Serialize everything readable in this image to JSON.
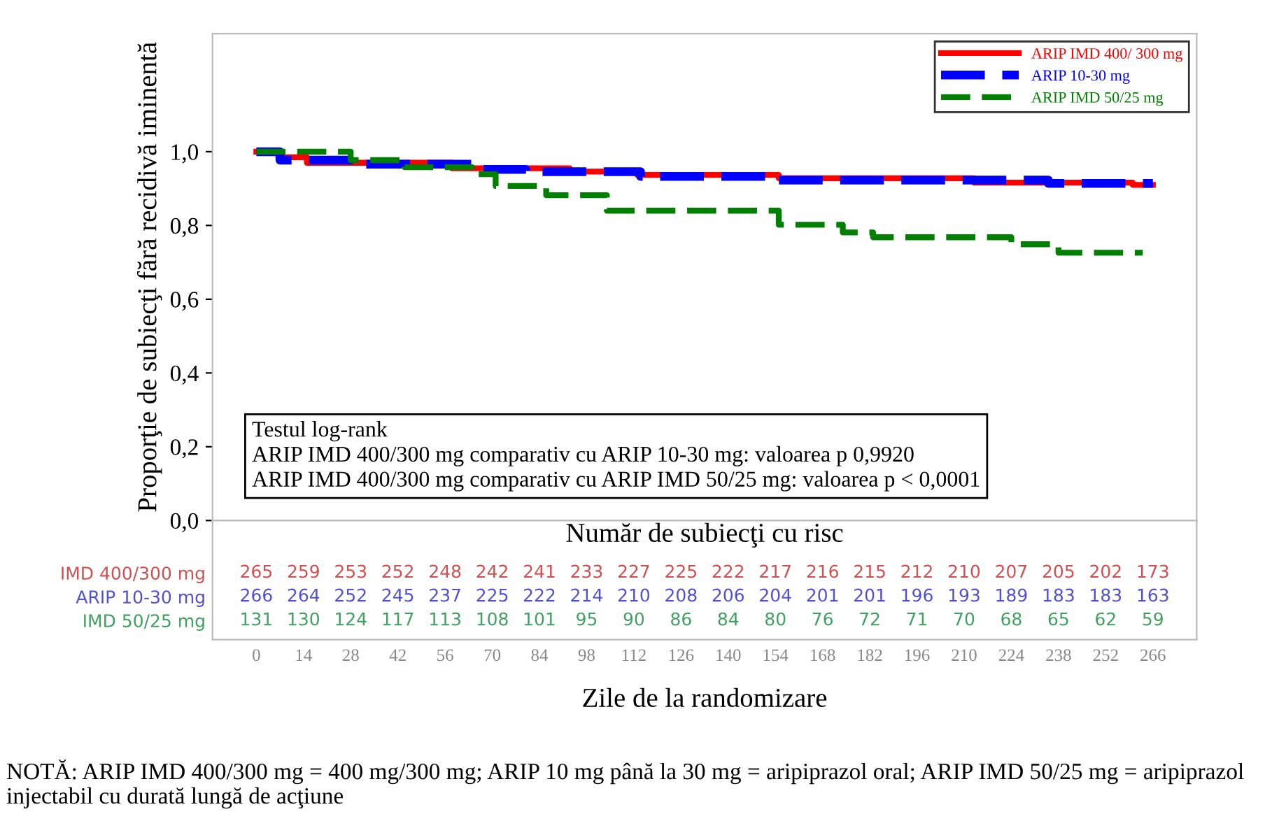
{
  "chart_data": [
    {
      "type": "step",
      "ylabel": "Proporţie de subiecţi fără recidivă iminentă",
      "xlim": [
        -13,
        279
      ],
      "ylim": [
        0,
        1.32
      ],
      "yticks": [
        {
          "value": 0,
          "label": "0,0"
        },
        {
          "value": 0.2,
          "label": "0,2"
        },
        {
          "value": 0.4,
          "label": "0,4"
        },
        {
          "value": 0.6,
          "label": "0,6"
        },
        {
          "value": 0.8,
          "label": "0,8"
        },
        {
          "value": 1.0,
          "label": "1,0"
        }
      ],
      "xticks": [
        0,
        14,
        28,
        42,
        56,
        70,
        84,
        98,
        112,
        126,
        140,
        154,
        168,
        182,
        196,
        210,
        224,
        238,
        252,
        266
      ],
      "xlabel": "Zile de la randomizare",
      "grid": false,
      "legend": "top right",
      "marker": "none",
      "series": [
        {
          "name": "ARIP IMD 400/ 300 mg",
          "color": "#ff0000",
          "line_style": "solid",
          "x": [
            0,
            7,
            15,
            58,
            93,
            113,
            155,
            213,
            260,
            266
          ],
          "values": [
            1.0,
            0.985,
            0.97,
            0.955,
            0.946,
            0.937,
            0.928,
            0.916,
            0.91,
            0.91
          ]
        },
        {
          "name": "ARIP 10-30 mg",
          "color": "#0000ff",
          "line_style": "dashed",
          "x": [
            0,
            7,
            31,
            64,
            80,
            114,
            152,
            235,
            266
          ],
          "values": [
            1.0,
            0.977,
            0.966,
            0.952,
            0.946,
            0.933,
            0.923,
            0.914,
            0.914
          ]
        },
        {
          "name": "ARIP IMD 50/25 mg",
          "color": "#008000",
          "line_style": "dashed",
          "x": [
            0,
            28,
            44,
            64,
            71,
            86,
            104,
            155,
            174,
            183,
            224,
            238,
            263
          ],
          "values": [
            1.0,
            0.977,
            0.958,
            0.939,
            0.907,
            0.882,
            0.84,
            0.802,
            0.781,
            0.768,
            0.749,
            0.726,
            0.726
          ]
        }
      ],
      "annotations": [
        "Testul log-rank",
        "ARIP IMD 400/300 mg comparativ cu ARIP 10-30 mg: valoarea p 0,9920",
        "ARIP IMD 400/300 mg comparativ cu ARIP IMD 50/25 mg: valoarea p < 0,0001"
      ]
    },
    {
      "type": "heatmap",
      "title": "Număr de subiecţi cu risc",
      "data_labels": true,
      "y_categories": [
        "IMD 400/300 mg",
        "ARIP 10-30 mg",
        "IMD 50/25 mg"
      ],
      "colors": [
        "#d05050",
        "#5050d0",
        "#40a060"
      ],
      "cells": [
        [
          265,
          259,
          253,
          252,
          248,
          242,
          241,
          233,
          227,
          225,
          222,
          217,
          216,
          215,
          212,
          210,
          207,
          205,
          202,
          173
        ],
        [
          266,
          264,
          252,
          245,
          237,
          225,
          222,
          214,
          210,
          208,
          206,
          204,
          201,
          201,
          196,
          193,
          189,
          183,
          183,
          163
        ],
        [
          131,
          130,
          124,
          117,
          113,
          108,
          101,
          95,
          90,
          86,
          84,
          80,
          76,
          72,
          71,
          70,
          68,
          65,
          62,
          59
        ]
      ],
      "categories": [
        null,
        null,
        null,
        null,
        null,
        null,
        null,
        null,
        null,
        null,
        null,
        null,
        null,
        null,
        null,
        null,
        null,
        null,
        null,
        null
      ],
      "annotations": [
        "NOTĂ: ARIP IMD 400/300 mg = 400 mg/300 mg; ARIP 10 mg până la 30 mg = aripiprazol oral; ARIP IMD 50/25 mg = aripiprazol injectabil cu durată lungă de acţiune"
      ]
    }
  ]
}
